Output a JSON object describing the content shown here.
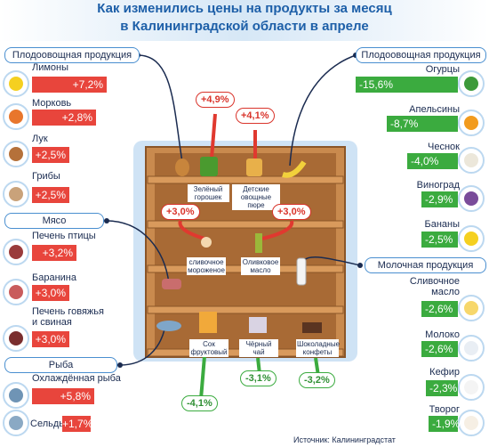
{
  "title": [
    "Как изменились цены на продукты за месяц",
    "в Калининградской области в апреле"
  ],
  "left": [
    {
      "heading": "Плодоовощная продукция",
      "items": [
        {
          "name": "Лимоны",
          "change": "+7,2%"
        },
        {
          "name": "Морковь",
          "change": "+2,8%"
        },
        {
          "name": "Лук",
          "change": "+2,5%"
        },
        {
          "name": "Грибы",
          "change": "+2,5%"
        }
      ]
    },
    {
      "heading": "Мясо",
      "items": [
        {
          "name": "Печень птицы",
          "change": "+3,2%"
        },
        {
          "name": "Баранина",
          "change": "+3,0%"
        },
        {
          "name": "Печень говяжья и свиная",
          "change": "+3,0%"
        }
      ]
    },
    {
      "heading": "Рыба",
      "items": [
        {
          "name": "Охлаждённая рыба",
          "change": "+5,8%"
        },
        {
          "name": "Сельдь",
          "change": "+1,7%"
        }
      ]
    }
  ],
  "right": [
    {
      "heading": "Плодоовощная продукция",
      "items": [
        {
          "name": "Огурцы",
          "change": "-15,6%"
        },
        {
          "name": "Апельсины",
          "change": "-8,7%"
        },
        {
          "name": "Чеснок",
          "change": "-4,0%"
        },
        {
          "name": "Виноград",
          "change": "-2,9%"
        },
        {
          "name": "Бананы",
          "change": "-2,5%"
        }
      ]
    },
    {
      "heading": "Молочная продукция",
      "items": [
        {
          "name": "Сливочное масло",
          "change": "-2,6%"
        },
        {
          "name": "Молоко",
          "change": "-2,6%"
        },
        {
          "name": "Кефир",
          "change": "-2,3%"
        },
        {
          "name": "Творог",
          "change": "-1,9%"
        }
      ]
    }
  ],
  "shelf": [
    {
      "name": "Зелёный горошек",
      "change": "+4,9%"
    },
    {
      "name": "Детские овощные пюре",
      "change": "+4,1%"
    },
    {
      "name": "сливочное мороженое",
      "change": "+3,0%"
    },
    {
      "name": "Оливковое масло",
      "change": "+3,0%"
    },
    {
      "name": "Сок фруктовый",
      "change": "-4,1%"
    },
    {
      "name": "Чёрный чай",
      "change": "-3,1%"
    },
    {
      "name": "Шоколадные конфеты",
      "change": "-3,2%"
    }
  ],
  "source": "Источник: Калининградстат"
}
